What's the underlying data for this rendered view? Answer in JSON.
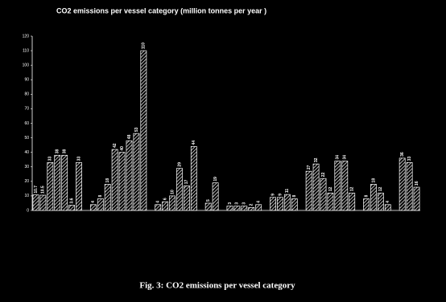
{
  "chart_data": {
    "type": "bar",
    "title": "CO2 emissions per vessel category  (million tonnes per year )",
    "caption": "Fig. 3: CO2 emissions per vessel category",
    "categories": [
      null,
      null,
      null,
      null,
      null,
      null,
      null,
      null,
      null,
      null,
      null,
      null,
      null,
      null,
      null,
      null,
      null,
      null,
      null,
      null,
      null,
      null,
      null,
      null,
      null,
      null,
      null,
      null,
      null,
      null,
      null,
      null,
      null,
      null,
      null,
      null,
      null,
      null,
      null,
      null,
      null,
      null,
      null,
      null,
      null,
      null,
      null,
      null,
      null,
      null,
      null,
      null,
      null,
      null
    ],
    "values": [
      10.7,
      10.5,
      33,
      38,
      38,
      3.6,
      33,
      null,
      4,
      8,
      18,
      42,
      40,
      48,
      53,
      110,
      null,
      4,
      6,
      10,
      29,
      17,
      44,
      null,
      5,
      19,
      null,
      3,
      3,
      3,
      2,
      4,
      null,
      9,
      9,
      11,
      8,
      null,
      27,
      32,
      22,
      12,
      34,
      34,
      12,
      null,
      8,
      18,
      12,
      4,
      null,
      36,
      33,
      16
    ],
    "color": "#ffffff",
    "ylim": [
      0,
      120
    ],
    "yticks": [
      0,
      10,
      20,
      30,
      40,
      50,
      60,
      70,
      80,
      90,
      100,
      110,
      120
    ],
    "grid": false
  }
}
